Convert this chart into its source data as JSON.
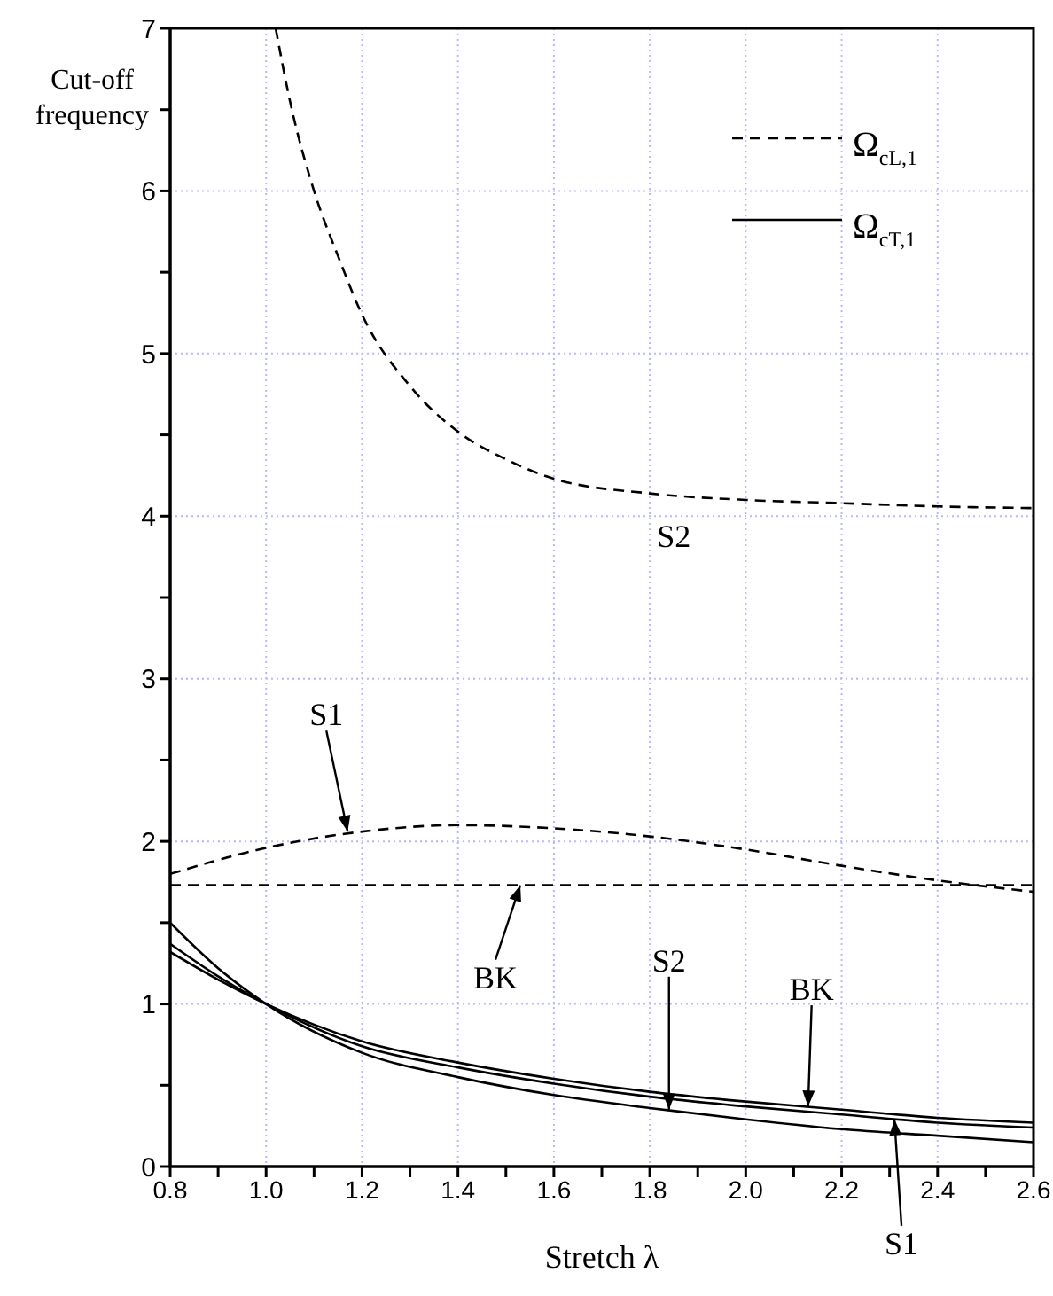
{
  "chart_data": {
    "type": "line",
    "xlabel": "Stretch  λ",
    "ylabel": "Cut-off frequency",
    "xlim": [
      0.8,
      2.6
    ],
    "ylim": [
      0,
      7
    ],
    "xticks": [
      {
        "value": 0.8,
        "label": "0.8"
      },
      {
        "value": 0.9,
        "label": null
      },
      {
        "value": 1.0,
        "label": "1.0"
      },
      {
        "value": 1.1,
        "label": null
      },
      {
        "value": 1.2,
        "label": "1.2"
      },
      {
        "value": 1.3,
        "label": null
      },
      {
        "value": 1.4,
        "label": "1.4"
      },
      {
        "value": 1.5,
        "label": null
      },
      {
        "value": 1.6,
        "label": "1.6"
      },
      {
        "value": 1.7,
        "label": null
      },
      {
        "value": 1.8,
        "label": "1.8"
      },
      {
        "value": 1.9,
        "label": null
      },
      {
        "value": 2.0,
        "label": "2.0"
      },
      {
        "value": 2.1,
        "label": null
      },
      {
        "value": 2.2,
        "label": "2.2"
      },
      {
        "value": 2.3,
        "label": null
      },
      {
        "value": 2.4,
        "label": "2.4"
      },
      {
        "value": 2.5,
        "label": null
      },
      {
        "value": 2.6,
        "label": "2.6"
      }
    ],
    "yticks": [
      0,
      {
        "value": 0.5,
        "label": null
      },
      1,
      {
        "value": 1.5,
        "label": null
      },
      2,
      {
        "value": 2.5,
        "label": null
      },
      3,
      {
        "value": 3.5,
        "label": null
      },
      4,
      {
        "value": 4.5,
        "label": null
      },
      5,
      {
        "value": 5.5,
        "label": null
      },
      6,
      {
        "value": 6.5,
        "label": null
      },
      7
    ],
    "grid": true,
    "legend": "top right",
    "marker": "none",
    "series": [
      {
        "name": "Ω$_{cL,1}$",
        "color": "#000000",
        "line_style": "dashed",
        "x": [
          1.02,
          1.05,
          1.1,
          1.15,
          1.2,
          1.3,
          1.4,
          1.5,
          1.6,
          1.8,
          2.0,
          2.2,
          2.4,
          2.6
        ],
        "values": [
          7.0,
          6.55,
          6.0,
          5.6,
          5.24,
          4.8,
          4.52,
          4.35,
          4.23,
          4.14,
          4.1,
          4.08,
          4.06,
          4.05
        ]
      },
      {
        "color": "#000000",
        "line_style": "dashed",
        "x": [
          0.8,
          1.0,
          1.2,
          1.4,
          1.6,
          1.8,
          2.0,
          2.2,
          2.4,
          2.6
        ],
        "values": [
          1.8,
          1.96,
          2.06,
          2.1,
          2.08,
          2.03,
          1.95,
          1.85,
          1.76,
          1.69
        ]
      },
      {
        "color": "#000000",
        "line_style": "dashed",
        "x": [
          0.8,
          2.6
        ],
        "values": [
          1.73,
          1.73
        ]
      },
      {
        "name": "Ω$_{cT,1}$",
        "color": "#000000",
        "line_style": "solid",
        "x": [
          0.8,
          0.9,
          1.0,
          1.2,
          1.4,
          1.6,
          1.8,
          2.0,
          2.2,
          2.4,
          2.6
        ],
        "values": [
          1.5,
          1.22,
          1.0,
          0.7,
          0.55,
          0.44,
          0.36,
          0.29,
          0.23,
          0.19,
          0.15
        ]
      },
      {
        "color": "#000000",
        "line_style": "solid",
        "x": [
          0.8,
          0.9,
          1.0,
          1.2,
          1.4,
          1.6,
          1.8,
          2.0,
          2.2,
          2.4,
          2.6
        ],
        "values": [
          1.37,
          1.17,
          1.0,
          0.74,
          0.61,
          0.51,
          0.43,
          0.37,
          0.32,
          0.27,
          0.24
        ]
      },
      {
        "color": "#000000",
        "line_style": "solid",
        "x": [
          0.8,
          0.9,
          1.0,
          1.2,
          1.4,
          1.6,
          1.8,
          2.0,
          2.2,
          2.4,
          2.6
        ],
        "values": [
          1.32,
          1.15,
          1.0,
          0.77,
          0.64,
          0.54,
          0.46,
          0.4,
          0.35,
          0.3,
          0.27
        ]
      }
    ],
    "annotations": [
      {
        "text": "S2",
        "x": 1.85,
        "y": 4.14
      },
      {
        "text": "S1",
        "x": 1.17,
        "y": 2.06
      },
      {
        "text": "BK",
        "x": 1.53,
        "y": 1.73
      },
      {
        "text": "S2",
        "x": 1.84,
        "y": 0.35
      },
      {
        "text": "BK",
        "x": 2.13,
        "y": 0.37
      },
      {
        "text": "S1",
        "x": 2.31,
        "y": 0.29
      }
    ]
  }
}
